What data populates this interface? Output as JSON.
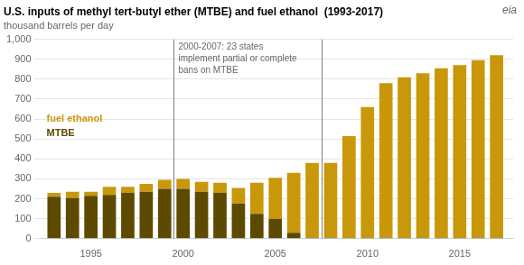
{
  "chart_data": {
    "type": "bar",
    "stacked": true,
    "title": "U.S. inputs of methyl tert-butyl ether (MTBE) and fuel ethanol  (1993-2017)",
    "subtitle": "thousand barrels per day",
    "logo": "eia",
    "x": [
      1993,
      1994,
      1995,
      1996,
      1997,
      1998,
      1999,
      2000,
      2001,
      2002,
      2003,
      2004,
      2005,
      2006,
      2007,
      2008,
      2009,
      2010,
      2011,
      2012,
      2013,
      2014,
      2015,
      2016,
      2017
    ],
    "series": [
      {
        "name": "MTBE",
        "color": "#5c4a00",
        "values": [
          210,
          205,
          215,
          220,
          230,
          235,
          250,
          250,
          235,
          230,
          175,
          125,
          100,
          30,
          5,
          5,
          5,
          5,
          5,
          5,
          5,
          5,
          5,
          5,
          5
        ]
      },
      {
        "name": "fuel ethanol",
        "color": "#c8980a",
        "values": [
          20,
          30,
          20,
          40,
          30,
          40,
          45,
          50,
          50,
          50,
          80,
          155,
          205,
          300,
          375,
          375,
          510,
          655,
          775,
          805,
          825,
          850,
          865,
          890,
          915
        ]
      }
    ],
    "xlim": [
      1992.3,
      2017.9
    ],
    "xticks": [
      1995,
      2000,
      2005,
      2010,
      2015
    ],
    "ylim": [
      0,
      1000
    ],
    "yticks": [
      0,
      100,
      200,
      300,
      400,
      500,
      600,
      700,
      800,
      900,
      {
        "value": 1000,
        "label": "1,000"
      }
    ],
    "grid": true,
    "vlines": [
      1999.5,
      2007.5
    ],
    "annotation": "2000-2007: 23 states\nimplement partial or complete\nbans on MTBE"
  }
}
